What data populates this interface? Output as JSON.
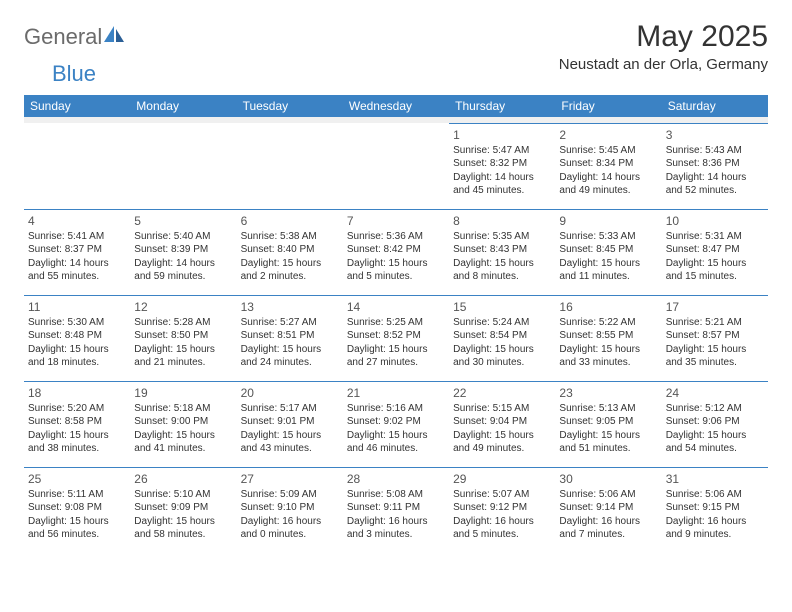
{
  "logo": {
    "general": "General",
    "blue": "Blue"
  },
  "title": "May 2025",
  "location": "Neustadt an der Orla, Germany",
  "colors": {
    "header_bg": "#3b82c4",
    "header_text": "#ffffff",
    "page_bg": "#ffffff",
    "text": "#333333",
    "logo_gray": "#6b6b6b",
    "logo_blue": "#3b82c4",
    "cell_border": "#3b82c4",
    "spacer_bg": "#f0f0f0"
  },
  "dayLabels": [
    "Sunday",
    "Monday",
    "Tuesday",
    "Wednesday",
    "Thursday",
    "Friday",
    "Saturday"
  ],
  "weeks": [
    [
      null,
      null,
      null,
      null,
      {
        "n": "1",
        "sr": "Sunrise: 5:47 AM",
        "ss": "Sunset: 8:32 PM",
        "d1": "Daylight: 14 hours",
        "d2": "and 45 minutes."
      },
      {
        "n": "2",
        "sr": "Sunrise: 5:45 AM",
        "ss": "Sunset: 8:34 PM",
        "d1": "Daylight: 14 hours",
        "d2": "and 49 minutes."
      },
      {
        "n": "3",
        "sr": "Sunrise: 5:43 AM",
        "ss": "Sunset: 8:36 PM",
        "d1": "Daylight: 14 hours",
        "d2": "and 52 minutes."
      }
    ],
    [
      {
        "n": "4",
        "sr": "Sunrise: 5:41 AM",
        "ss": "Sunset: 8:37 PM",
        "d1": "Daylight: 14 hours",
        "d2": "and 55 minutes."
      },
      {
        "n": "5",
        "sr": "Sunrise: 5:40 AM",
        "ss": "Sunset: 8:39 PM",
        "d1": "Daylight: 14 hours",
        "d2": "and 59 minutes."
      },
      {
        "n": "6",
        "sr": "Sunrise: 5:38 AM",
        "ss": "Sunset: 8:40 PM",
        "d1": "Daylight: 15 hours",
        "d2": "and 2 minutes."
      },
      {
        "n": "7",
        "sr": "Sunrise: 5:36 AM",
        "ss": "Sunset: 8:42 PM",
        "d1": "Daylight: 15 hours",
        "d2": "and 5 minutes."
      },
      {
        "n": "8",
        "sr": "Sunrise: 5:35 AM",
        "ss": "Sunset: 8:43 PM",
        "d1": "Daylight: 15 hours",
        "d2": "and 8 minutes."
      },
      {
        "n": "9",
        "sr": "Sunrise: 5:33 AM",
        "ss": "Sunset: 8:45 PM",
        "d1": "Daylight: 15 hours",
        "d2": "and 11 minutes."
      },
      {
        "n": "10",
        "sr": "Sunrise: 5:31 AM",
        "ss": "Sunset: 8:47 PM",
        "d1": "Daylight: 15 hours",
        "d2": "and 15 minutes."
      }
    ],
    [
      {
        "n": "11",
        "sr": "Sunrise: 5:30 AM",
        "ss": "Sunset: 8:48 PM",
        "d1": "Daylight: 15 hours",
        "d2": "and 18 minutes."
      },
      {
        "n": "12",
        "sr": "Sunrise: 5:28 AM",
        "ss": "Sunset: 8:50 PM",
        "d1": "Daylight: 15 hours",
        "d2": "and 21 minutes."
      },
      {
        "n": "13",
        "sr": "Sunrise: 5:27 AM",
        "ss": "Sunset: 8:51 PM",
        "d1": "Daylight: 15 hours",
        "d2": "and 24 minutes."
      },
      {
        "n": "14",
        "sr": "Sunrise: 5:25 AM",
        "ss": "Sunset: 8:52 PM",
        "d1": "Daylight: 15 hours",
        "d2": "and 27 minutes."
      },
      {
        "n": "15",
        "sr": "Sunrise: 5:24 AM",
        "ss": "Sunset: 8:54 PM",
        "d1": "Daylight: 15 hours",
        "d2": "and 30 minutes."
      },
      {
        "n": "16",
        "sr": "Sunrise: 5:22 AM",
        "ss": "Sunset: 8:55 PM",
        "d1": "Daylight: 15 hours",
        "d2": "and 33 minutes."
      },
      {
        "n": "17",
        "sr": "Sunrise: 5:21 AM",
        "ss": "Sunset: 8:57 PM",
        "d1": "Daylight: 15 hours",
        "d2": "and 35 minutes."
      }
    ],
    [
      {
        "n": "18",
        "sr": "Sunrise: 5:20 AM",
        "ss": "Sunset: 8:58 PM",
        "d1": "Daylight: 15 hours",
        "d2": "and 38 minutes."
      },
      {
        "n": "19",
        "sr": "Sunrise: 5:18 AM",
        "ss": "Sunset: 9:00 PM",
        "d1": "Daylight: 15 hours",
        "d2": "and 41 minutes."
      },
      {
        "n": "20",
        "sr": "Sunrise: 5:17 AM",
        "ss": "Sunset: 9:01 PM",
        "d1": "Daylight: 15 hours",
        "d2": "and 43 minutes."
      },
      {
        "n": "21",
        "sr": "Sunrise: 5:16 AM",
        "ss": "Sunset: 9:02 PM",
        "d1": "Daylight: 15 hours",
        "d2": "and 46 minutes."
      },
      {
        "n": "22",
        "sr": "Sunrise: 5:15 AM",
        "ss": "Sunset: 9:04 PM",
        "d1": "Daylight: 15 hours",
        "d2": "and 49 minutes."
      },
      {
        "n": "23",
        "sr": "Sunrise: 5:13 AM",
        "ss": "Sunset: 9:05 PM",
        "d1": "Daylight: 15 hours",
        "d2": "and 51 minutes."
      },
      {
        "n": "24",
        "sr": "Sunrise: 5:12 AM",
        "ss": "Sunset: 9:06 PM",
        "d1": "Daylight: 15 hours",
        "d2": "and 54 minutes."
      }
    ],
    [
      {
        "n": "25",
        "sr": "Sunrise: 5:11 AM",
        "ss": "Sunset: 9:08 PM",
        "d1": "Daylight: 15 hours",
        "d2": "and 56 minutes."
      },
      {
        "n": "26",
        "sr": "Sunrise: 5:10 AM",
        "ss": "Sunset: 9:09 PM",
        "d1": "Daylight: 15 hours",
        "d2": "and 58 minutes."
      },
      {
        "n": "27",
        "sr": "Sunrise: 5:09 AM",
        "ss": "Sunset: 9:10 PM",
        "d1": "Daylight: 16 hours",
        "d2": "and 0 minutes."
      },
      {
        "n": "28",
        "sr": "Sunrise: 5:08 AM",
        "ss": "Sunset: 9:11 PM",
        "d1": "Daylight: 16 hours",
        "d2": "and 3 minutes."
      },
      {
        "n": "29",
        "sr": "Sunrise: 5:07 AM",
        "ss": "Sunset: 9:12 PM",
        "d1": "Daylight: 16 hours",
        "d2": "and 5 minutes."
      },
      {
        "n": "30",
        "sr": "Sunrise: 5:06 AM",
        "ss": "Sunset: 9:14 PM",
        "d1": "Daylight: 16 hours",
        "d2": "and 7 minutes."
      },
      {
        "n": "31",
        "sr": "Sunrise: 5:06 AM",
        "ss": "Sunset: 9:15 PM",
        "d1": "Daylight: 16 hours",
        "d2": "and 9 minutes."
      }
    ]
  ]
}
